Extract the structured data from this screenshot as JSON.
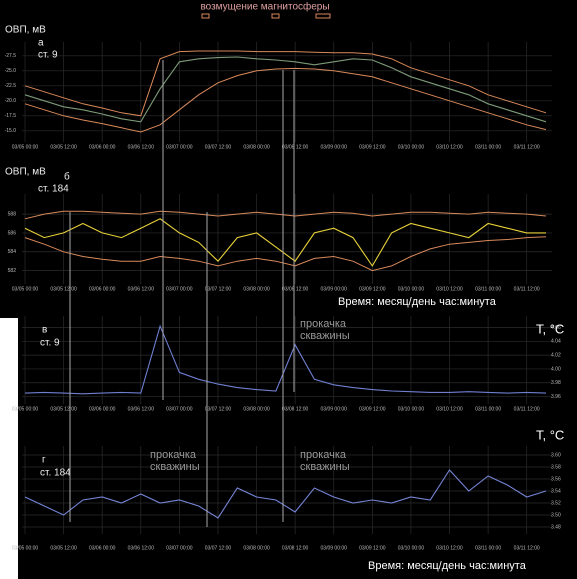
{
  "chart_data": [
    {
      "type": "line",
      "legend_title": "возмущение магнитосферы",
      "y_label": "ОВП, мВ",
      "panel_label": "а",
      "subtitle": "ст. 9",
      "x": [
        "03/05 00:00",
        "03/05 06:00",
        "03/05 12:00",
        "03/05 18:00",
        "03/06 00:00",
        "03/06 06:00",
        "03/06 12:00",
        "03/06 18:00",
        "03/07 00:00",
        "03/07 06:00",
        "03/07 12:00",
        "03/07 18:00",
        "03/08 00:00",
        "03/08 06:00",
        "03/08 12:00",
        "03/08 18:00",
        "03/09 00:00",
        "03/09 06:00",
        "03/09 12:00",
        "03/09 18:00",
        "03/10 00:00",
        "03/10 06:00",
        "03/10 12:00",
        "03/10 18:00",
        "03/11 00:00",
        "03/11 06:00",
        "03/11 12:00",
        "03/11 18:00"
      ],
      "xticks": [
        "03/05 00:00",
        "03/05 12:00",
        "03/06 00:00",
        "03/06 12:00",
        "03/07 00:00",
        "03/07 12:00",
        "03/08 00:00",
        "03/08 12:00",
        "03/09 00:00",
        "03/09 12:00",
        "03/10 00:00",
        "03/10 12:00",
        "03/11 00:00",
        "03/11 12:00"
      ],
      "ylim": [
        -13.8,
        -28.8
      ],
      "yticks": [
        -27.5,
        {
          "value": -25.0,
          "label": "-25.0"
        },
        -22.5,
        {
          "value": -20.0,
          "label": "-20.0"
        },
        -17.5,
        {
          "value": -15.0,
          "label": "-15.0"
        }
      ],
      "grid": true,
      "series": [
        {
          "color": "#7c9a78",
          "values": [
            -21,
            -20,
            -19,
            -18.5,
            -17.8,
            -17,
            -16.5,
            -22,
            -26.5,
            -27,
            -27.2,
            -27.3,
            -27,
            -26.8,
            -26.5,
            -26,
            -26.5,
            -27,
            -26.8,
            -25.5,
            -24,
            -23,
            -22,
            -21,
            -19.5,
            -18.5,
            -17.5,
            -16.5
          ]
        },
        {
          "color": "#d9895a",
          "values": [
            -22.5,
            -21.5,
            -20.5,
            -19.5,
            -18.8,
            -18,
            -17.5,
            -27,
            -28.2,
            -28.3,
            -28.3,
            -28.3,
            -28.2,
            -28.2,
            -28.2,
            -28.1,
            -28,
            -28,
            -27.8,
            -27,
            -25.5,
            -24.5,
            -23.5,
            -22.5,
            -21,
            -20,
            -19,
            -18
          ]
        },
        {
          "color": "#d9895a",
          "values": [
            -19.5,
            -18.5,
            -17.5,
            -16.8,
            -16.2,
            -15.5,
            -14.8,
            -16,
            -18.5,
            -21,
            -23,
            -24.2,
            -25,
            -25.3,
            -25.4,
            -25.3,
            -25,
            -24.5,
            -24,
            -23,
            -22,
            -21,
            -20,
            -19,
            -18,
            -17,
            -16,
            -15.2
          ]
        }
      ]
    },
    {
      "type": "line",
      "y_label": "ОВП, мВ",
      "panel_label": "б",
      "subtitle": "ст. 184",
      "x_label": "Время: месяц/день час:минута",
      "x": [
        "03/05 00:00",
        "03/05 06:00",
        "03/05 12:00",
        "03/05 18:00",
        "03/06 00:00",
        "03/06 06:00",
        "03/06 12:00",
        "03/06 18:00",
        "03/07 00:00",
        "03/07 06:00",
        "03/07 12:00",
        "03/07 18:00",
        "03/08 00:00",
        "03/08 06:00",
        "03/08 12:00",
        "03/08 18:00",
        "03/09 00:00",
        "03/09 06:00",
        "03/09 12:00",
        "03/09 18:00",
        "03/10 00:00",
        "03/10 06:00",
        "03/10 12:00",
        "03/10 18:00",
        "03/11 00:00",
        "03/11 06:00",
        "03/11 12:00",
        "03/11 18:00"
      ],
      "xticks": [
        "03/05 00:00",
        "03/05 12:00",
        "03/06 00:00",
        "03/06 12:00",
        "03/07 00:00",
        "03/07 12:00",
        "03/08 00:00",
        "03/08 12:00",
        "03/09 00:00",
        "03/09 12:00",
        "03/10 00:00",
        "03/10 12:00",
        "03/11 00:00",
        "03/11 12:00"
      ],
      "ylim": [
        581,
        589.5
      ],
      "yticks": [
        582,
        584,
        586,
        588
      ],
      "grid": true,
      "series": [
        {
          "color": "#e8d23a",
          "values": [
            586.5,
            585.5,
            586,
            587,
            586,
            585.5,
            586.5,
            587.5,
            586,
            585,
            583,
            585.5,
            586,
            584.5,
            583,
            586,
            586.5,
            585.5,
            582.5,
            586,
            587,
            586.5,
            586,
            585.5,
            587,
            586.5,
            586,
            586
          ]
        },
        {
          "color": "#d9895a",
          "values": [
            587.5,
            588,
            588.3,
            588.3,
            588.2,
            588.1,
            588,
            588.3,
            588.2,
            588,
            587.8,
            588,
            588.2,
            588,
            587.8,
            588,
            588.2,
            588.1,
            587.8,
            588,
            588.2,
            588.2,
            588.1,
            588,
            588.2,
            588.1,
            588,
            587.8
          ]
        },
        {
          "color": "#d9895a",
          "values": [
            585.5,
            584.8,
            584,
            583.5,
            583.2,
            583,
            583,
            583.5,
            583.3,
            583,
            582.5,
            583,
            583.3,
            583,
            582.5,
            583.3,
            583.5,
            583,
            582,
            582.5,
            583.5,
            584.3,
            584.8,
            585,
            585.2,
            585.3,
            585.5,
            585.6
          ]
        }
      ]
    },
    {
      "type": "line",
      "y_label": "T, °C",
      "panel_label": "в",
      "subtitle": "ст. 9",
      "annotations": [
        [
          "прокачка",
          "скважины"
        ]
      ],
      "x": [
        "03/05 00:00",
        "03/05 06:00",
        "03/05 12:00",
        "03/05 18:00",
        "03/06 00:00",
        "03/06 06:00",
        "03/06 12:00",
        "03/06 18:00",
        "03/07 00:00",
        "03/07 06:00",
        "03/07 12:00",
        "03/07 18:00",
        "03/08 00:00",
        "03/08 06:00",
        "03/08 12:00",
        "03/08 18:00",
        "03/09 00:00",
        "03/09 06:00",
        "03/09 12:00",
        "03/09 18:00",
        "03/10 00:00",
        "03/10 06:00",
        "03/10 12:00",
        "03/10 18:00",
        "03/11 00:00",
        "03/11 06:00",
        "03/11 12:00",
        "03/11 18:00"
      ],
      "xticks": [
        "03/05 00:00",
        "03/05 12:00",
        "03/06 00:00",
        "03/06 12:00",
        "03/07 00:00",
        "03/07 12:00",
        "03/08 00:00",
        "03/08 12:00",
        "03/09 00:00",
        "03/09 12:00",
        "03/10 00:00",
        "03/10 12:00",
        "03/11 00:00",
        "03/11 12:00"
      ],
      "ylim": [
        3.955,
        4.068
      ],
      "yticks": [
        3.96,
        3.98,
        {
          "value": 4.0,
          "label": "4.00"
        },
        4.02,
        4.04,
        4.06
      ],
      "grid": true,
      "series": [
        {
          "color": "#6f7fd0",
          "values": [
            3.965,
            3.966,
            3.965,
            3.964,
            3.965,
            3.966,
            3.965,
            4.062,
            3.995,
            3.985,
            3.978,
            3.973,
            3.97,
            3.968,
            4.035,
            3.985,
            3.977,
            3.973,
            3.97,
            3.968,
            3.967,
            3.966,
            3.966,
            3.967,
            3.966,
            3.965,
            3.966,
            3.965
          ]
        }
      ]
    },
    {
      "type": "line",
      "y_label": "T, °C",
      "panel_label": "г",
      "subtitle": "ст. 184",
      "x_label": "Время: месяц/день час:минута",
      "annotations": [
        [
          "прокачка",
          "скважины"
        ],
        [
          "прокачка",
          "скважины"
        ]
      ],
      "x": [
        "03/05 00:00",
        "03/05 06:00",
        "03/05 12:00",
        "03/05 18:00",
        "03/06 00:00",
        "03/06 06:00",
        "03/06 12:00",
        "03/06 18:00",
        "03/07 00:00",
        "03/07 06:00",
        "03/07 12:00",
        "03/07 18:00",
        "03/08 00:00",
        "03/08 06:00",
        "03/08 12:00",
        "03/08 18:00",
        "03/09 00:00",
        "03/09 06:00",
        "03/09 12:00",
        "03/09 18:00",
        "03/10 00:00",
        "03/10 06:00",
        "03/10 12:00",
        "03/10 18:00",
        "03/11 00:00",
        "03/11 06:00",
        "03/11 12:00",
        "03/11 18:00"
      ],
      "xticks": [
        "03/05 00:00",
        "03/05 12:00",
        "03/06 00:00",
        "03/06 12:00",
        "03/07 00:00",
        "03/07 12:00",
        "03/08 00:00",
        "03/08 12:00",
        "03/09 00:00",
        "03/09 12:00",
        "03/10 00:00",
        "03/10 12:00",
        "03/11 00:00",
        "03/11 12:00"
      ],
      "ylim": [
        3.475,
        3.605
      ],
      "yticks": [
        3.48,
        {
          "value": 3.5,
          "label": "3.50"
        },
        3.52,
        3.54,
        3.56,
        3.58,
        {
          "value": 3.6,
          "label": "3.60"
        }
      ],
      "grid": true,
      "series": [
        {
          "color": "#7585d6",
          "values": [
            3.53,
            3.515,
            3.5,
            3.525,
            3.53,
            3.52,
            3.535,
            3.52,
            3.525,
            3.515,
            3.495,
            3.545,
            3.53,
            3.525,
            3.505,
            3.545,
            3.53,
            3.52,
            3.525,
            3.52,
            3.53,
            3.525,
            3.575,
            3.54,
            3.565,
            3.55,
            3.53,
            3.54
          ]
        }
      ]
    }
  ]
}
